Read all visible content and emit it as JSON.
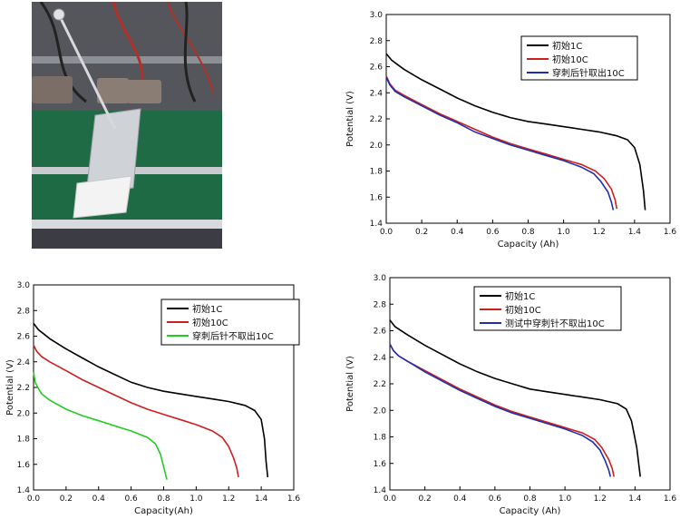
{
  "photo": {
    "description_icon": "battery-nail-penetration-photo-icon"
  },
  "chart_data": [
    {
      "type": "line",
      "xlabel": "Capacity (Ah)",
      "ylabel": "Potential (V)",
      "xlim": [
        0.0,
        1.6
      ],
      "ylim": [
        1.4,
        3.0
      ],
      "xticks": [
        "0.0",
        "0.2",
        "0.4",
        "0.6",
        "0.8",
        "1.0",
        "1.2",
        "1.4",
        "1.6"
      ],
      "yticks": [
        "1.4",
        "1.6",
        "1.8",
        "2.0",
        "2.2",
        "2.4",
        "2.6",
        "2.8",
        "3.0"
      ],
      "legend_position": "top-right",
      "grid": false,
      "series": [
        {
          "name": "初始1C",
          "color": "#000000",
          "x": [
            0.0,
            0.03,
            0.1,
            0.2,
            0.3,
            0.4,
            0.5,
            0.6,
            0.7,
            0.8,
            0.9,
            1.0,
            1.1,
            1.2,
            1.3,
            1.36,
            1.4,
            1.43,
            1.45,
            1.46
          ],
          "y": [
            2.7,
            2.65,
            2.58,
            2.5,
            2.43,
            2.36,
            2.3,
            2.25,
            2.21,
            2.18,
            2.16,
            2.14,
            2.12,
            2.1,
            2.07,
            2.04,
            1.98,
            1.85,
            1.65,
            1.5
          ]
        },
        {
          "name": "初始10C",
          "color": "#cc1f1f",
          "x": [
            0.0,
            0.02,
            0.05,
            0.1,
            0.2,
            0.3,
            0.4,
            0.5,
            0.6,
            0.7,
            0.8,
            0.9,
            1.0,
            1.1,
            1.18,
            1.23,
            1.27,
            1.29,
            1.3
          ],
          "y": [
            2.53,
            2.47,
            2.42,
            2.38,
            2.31,
            2.24,
            2.18,
            2.12,
            2.06,
            2.01,
            1.97,
            1.93,
            1.89,
            1.85,
            1.8,
            1.74,
            1.66,
            1.58,
            1.51
          ]
        },
        {
          "name": "穿刺后针取出10C",
          "color": "#1f2fb0",
          "x": [
            0.0,
            0.02,
            0.05,
            0.1,
            0.2,
            0.3,
            0.4,
            0.5,
            0.6,
            0.7,
            0.8,
            0.9,
            1.0,
            1.1,
            1.17,
            1.21,
            1.25,
            1.27,
            1.28
          ],
          "y": [
            2.52,
            2.46,
            2.41,
            2.37,
            2.3,
            2.23,
            2.17,
            2.1,
            2.05,
            2.0,
            1.96,
            1.92,
            1.88,
            1.83,
            1.78,
            1.72,
            1.64,
            1.56,
            1.5
          ]
        }
      ]
    },
    {
      "type": "line",
      "xlabel": "Capacity(Ah)",
      "ylabel": "Potential (V)",
      "xlim": [
        0.0,
        1.6
      ],
      "ylim": [
        1.4,
        3.0
      ],
      "xticks": [
        "0.0",
        "0.2",
        "0.4",
        "0.6",
        "0.8",
        "1.0",
        "1.2",
        "1.4",
        "1.6"
      ],
      "yticks": [
        "1.4",
        "1.6",
        "1.8",
        "2.0",
        "2.2",
        "2.4",
        "2.6",
        "2.8",
        "3.0"
      ],
      "legend_position": "top-right",
      "grid": false,
      "series": [
        {
          "name": "初始1C",
          "color": "#000000",
          "x": [
            0.0,
            0.03,
            0.1,
            0.2,
            0.3,
            0.4,
            0.5,
            0.6,
            0.7,
            0.8,
            0.9,
            1.0,
            1.1,
            1.2,
            1.3,
            1.36,
            1.4,
            1.42,
            1.43,
            1.44
          ],
          "y": [
            2.7,
            2.65,
            2.58,
            2.5,
            2.43,
            2.36,
            2.3,
            2.24,
            2.2,
            2.17,
            2.15,
            2.13,
            2.11,
            2.09,
            2.06,
            2.02,
            1.95,
            1.8,
            1.62,
            1.5
          ]
        },
        {
          "name": "初始10C",
          "color": "#cc1f1f",
          "x": [
            0.0,
            0.02,
            0.05,
            0.1,
            0.2,
            0.3,
            0.4,
            0.5,
            0.6,
            0.7,
            0.8,
            0.9,
            1.0,
            1.1,
            1.16,
            1.2,
            1.23,
            1.25,
            1.26
          ],
          "y": [
            2.53,
            2.48,
            2.44,
            2.4,
            2.33,
            2.26,
            2.2,
            2.14,
            2.08,
            2.03,
            1.99,
            1.95,
            1.91,
            1.86,
            1.81,
            1.74,
            1.65,
            1.57,
            1.5
          ]
        },
        {
          "name": "穿刺后针不取出10C",
          "color": "#22cc22",
          "x": [
            0.0,
            0.01,
            0.03,
            0.05,
            0.1,
            0.2,
            0.3,
            0.4,
            0.5,
            0.6,
            0.7,
            0.75,
            0.78,
            0.8,
            0.82
          ],
          "y": [
            2.32,
            2.24,
            2.19,
            2.15,
            2.1,
            2.03,
            1.98,
            1.94,
            1.9,
            1.86,
            1.81,
            1.76,
            1.68,
            1.58,
            1.48
          ]
        }
      ]
    },
    {
      "type": "line",
      "xlabel": "Capacity (Ah)",
      "ylabel": "Potential (V)",
      "xlim": [
        0.0,
        1.6
      ],
      "ylim": [
        1.4,
        3.0
      ],
      "xticks": [
        "0.0",
        "0.2",
        "0.4",
        "0.6",
        "0.8",
        "1.0",
        "1.2",
        "1.4",
        "1.6"
      ],
      "yticks": [
        "1.4",
        "1.6",
        "1.8",
        "2.0",
        "2.2",
        "2.4",
        "2.6",
        "2.8",
        "3.0"
      ],
      "legend_position": "top-right",
      "grid": false,
      "series": [
        {
          "name": "初始1C",
          "color": "#000000",
          "x": [
            0.0,
            0.03,
            0.1,
            0.2,
            0.3,
            0.4,
            0.5,
            0.6,
            0.7,
            0.8,
            0.9,
            1.0,
            1.1,
            1.2,
            1.3,
            1.35,
            1.38,
            1.41,
            1.43
          ],
          "y": [
            2.68,
            2.63,
            2.57,
            2.49,
            2.42,
            2.35,
            2.29,
            2.24,
            2.2,
            2.16,
            2.14,
            2.12,
            2.1,
            2.08,
            2.05,
            2.01,
            1.92,
            1.72,
            1.5
          ]
        },
        {
          "name": "初始10C",
          "color": "#cc1f1f",
          "x": [
            0.0,
            0.02,
            0.05,
            0.1,
            0.2,
            0.3,
            0.4,
            0.5,
            0.6,
            0.7,
            0.8,
            0.9,
            1.0,
            1.1,
            1.17,
            1.21,
            1.25,
            1.27,
            1.28
          ],
          "y": [
            2.5,
            2.45,
            2.41,
            2.37,
            2.3,
            2.23,
            2.16,
            2.1,
            2.04,
            1.99,
            1.95,
            1.91,
            1.87,
            1.83,
            1.78,
            1.72,
            1.63,
            1.56,
            1.5
          ]
        },
        {
          "name": "测试中穿刺针不取出10C",
          "color": "#1f2fb0",
          "x": [
            0.0,
            0.02,
            0.05,
            0.1,
            0.2,
            0.3,
            0.4,
            0.5,
            0.6,
            0.7,
            0.8,
            0.9,
            1.0,
            1.1,
            1.16,
            1.2,
            1.23,
            1.25,
            1.26
          ],
          "y": [
            2.5,
            2.45,
            2.41,
            2.37,
            2.29,
            2.22,
            2.15,
            2.09,
            2.03,
            1.98,
            1.94,
            1.9,
            1.86,
            1.81,
            1.76,
            1.7,
            1.62,
            1.55,
            1.5
          ]
        }
      ]
    }
  ]
}
